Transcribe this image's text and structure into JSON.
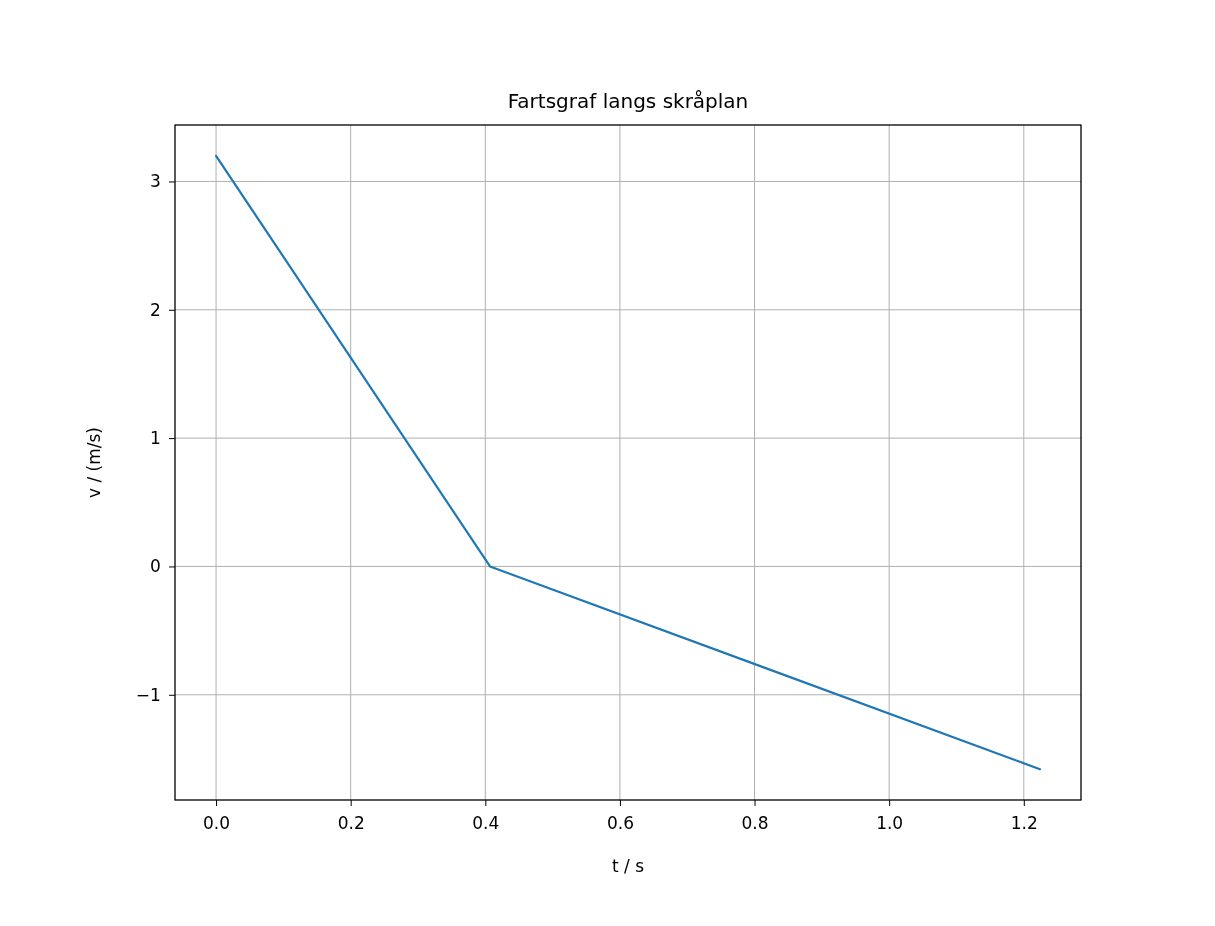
{
  "chart_data": {
    "type": "line",
    "title": "Fartsgraf langs skråplan",
    "xlabel": "t / s",
    "ylabel": "v / (m/s)",
    "x": [
      0,
      0.407,
      1.224
    ],
    "series": [
      {
        "color": "#1f77b4",
        "values": [
          3.2,
          0,
          -1.58
        ]
      }
    ],
    "xlim": [
      -0.061,
      1.285
    ],
    "ylim": [
      -1.82,
      3.44
    ],
    "xticks": [
      {
        "value": 0,
        "label": "0.0"
      },
      {
        "value": 0.2,
        "label": "0.2"
      },
      {
        "value": 0.4,
        "label": "0.4"
      },
      {
        "value": 0.6,
        "label": "0.6"
      },
      {
        "value": 0.8,
        "label": "0.8"
      },
      {
        "value": 1,
        "label": "1.0"
      },
      {
        "value": 1.2,
        "label": "1.2"
      }
    ],
    "yticks": [
      {
        "value": -1,
        "label": "−1"
      },
      0,
      1,
      2,
      3
    ],
    "grid": true,
    "marker": "none",
    "line_style": "solid"
  }
}
